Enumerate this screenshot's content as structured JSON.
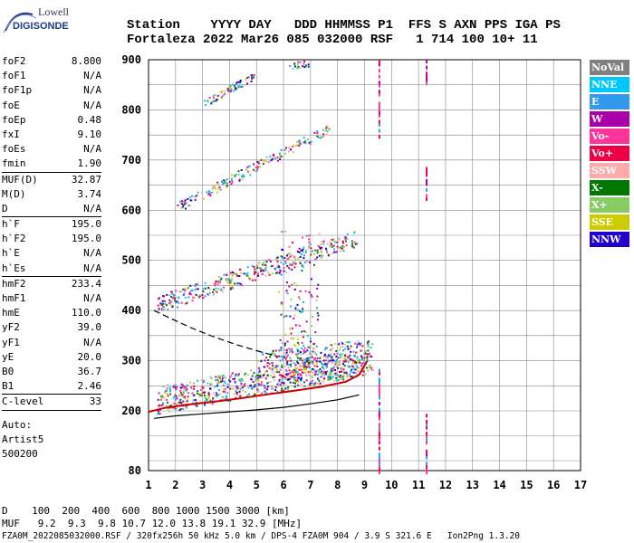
{
  "logo": {
    "brand": "Lowell",
    "name": "DIGISONDE"
  },
  "header": {
    "row1": "Station    YYYY DAY   DDD HHMMSS P1  FFS S AXN PPS IGA PS",
    "row2": "Fortaleza 2022 Mar26 085 032000 RSF   1 714 100 10+ 11"
  },
  "params": {
    "groups": [
      [
        [
          "foF2",
          "8.800"
        ],
        [
          "foF1",
          "N/A"
        ],
        [
          "foF1p",
          "N/A"
        ],
        [
          "foE",
          "N/A"
        ],
        [
          "foEp",
          "0.48"
        ],
        [
          "fxI",
          "9.10"
        ],
        [
          "foEs",
          "N/A"
        ],
        [
          "fmin",
          "1.90"
        ]
      ],
      [
        [
          "MUF(D)",
          "32.87"
        ],
        [
          "M(D)",
          "3.74"
        ],
        [
          "D",
          "N/A"
        ]
      ],
      [
        [
          "h`F",
          "195.0"
        ],
        [
          "h`F2",
          "195.0"
        ],
        [
          "h`E",
          "N/A"
        ],
        [
          "h`Es",
          "N/A"
        ]
      ],
      [
        [
          "hmF2",
          "233.4"
        ],
        [
          "hmF1",
          "N/A"
        ],
        [
          "hmE",
          "110.0"
        ],
        [
          "yF2",
          "39.0"
        ],
        [
          "yF1",
          "N/A"
        ],
        [
          "yE",
          "20.0"
        ],
        [
          "B0",
          "36.7"
        ],
        [
          "B1",
          "2.46"
        ]
      ],
      [
        [
          "C-level",
          "33"
        ]
      ]
    ],
    "auto_label": "Auto:",
    "artist": "Artist5",
    "artist_code": "500200"
  },
  "bottom": {
    "d_row": "D    100  200  400  600  800 1000 1500 3000 [km]",
    "muf_row": "MUF   9.2  9.3  9.8 10.7 12.0 13.8 19.1 32.9 [MHz]",
    "footer": "FZA0M_2022085032000.RSF / 320fx256h 50 kHz 5.0 km / DPS-4 FZA0M 904 / 3.9 S 321.6 E   Ion2Png 1.3.20"
  },
  "legend": [
    {
      "label": "NoVal",
      "color": "#808080"
    },
    {
      "label": "NNE",
      "color": "#00c8ff"
    },
    {
      "label": "E",
      "color": "#3399ee"
    },
    {
      "label": "W",
      "color": "#aa00aa"
    },
    {
      "label": "Vo-",
      "color": "#ff3399"
    },
    {
      "label": "Vo+",
      "color": "#ee0044"
    },
    {
      "label": "SSW",
      "color": "#ffaaaa"
    },
    {
      "label": "X-",
      "color": "#007700"
    },
    {
      "label": "X+",
      "color": "#88cc66"
    },
    {
      "label": "SSE",
      "color": "#cccc00"
    },
    {
      "label": "NNW",
      "color": "#2200cc"
    }
  ],
  "chart_data": {
    "type": "scatter",
    "x_ticks": [
      "1",
      "2",
      "3",
      "4",
      "5",
      "6",
      "7",
      "8",
      "9",
      "10",
      "11",
      "12",
      "13",
      "14",
      "15",
      "16",
      "17"
    ],
    "y_ticks": [
      "80",
      "200",
      "300",
      "400",
      "500",
      "600",
      "700",
      "800",
      "900"
    ],
    "xlim": [
      1,
      17
    ],
    "ylim_labels": [
      80,
      900
    ],
    "grid": true,
    "profile": {
      "x": [
        1.0,
        1.6,
        2.4,
        3.4,
        4.4,
        5.4,
        6.4,
        7.4,
        8.3,
        8.8,
        9.1
      ],
      "y": [
        198,
        206,
        212,
        218,
        225,
        233,
        240,
        248,
        258,
        272,
        300
      ]
    },
    "virtual_height_curve": {
      "x": [
        1.2,
        2.0,
        3.0,
        4.0,
        5.0,
        6.0,
        7.0,
        8.0,
        8.8
      ],
      "y": [
        185,
        190,
        194,
        198,
        202,
        207,
        214,
        222,
        232
      ]
    },
    "extrapolation": {
      "x": [
        1.2,
        1.8,
        2.6,
        3.4,
        4.2,
        5.0,
        5.8
      ],
      "y": [
        400,
        385,
        365,
        348,
        333,
        320,
        308
      ]
    },
    "clusters": [
      {
        "x0": 1.3,
        "x1": 9.1,
        "y0": 195,
        "y1": 250,
        "slope": 10,
        "n": 700
      },
      {
        "x0": 5.0,
        "x1": 9.3,
        "y0": 250,
        "y1": 320,
        "slope": 6,
        "n": 260
      },
      {
        "x0": 5.8,
        "x1": 7.3,
        "y0": 300,
        "y1": 560,
        "slope": 0,
        "n": 160
      },
      {
        "x0": 1.3,
        "x1": 8.7,
        "y0": 395,
        "y1": 430,
        "slope": 18,
        "n": 360
      },
      {
        "x0": 2.0,
        "x1": 7.8,
        "y0": 595,
        "y1": 615,
        "slope": 28,
        "n": 170
      },
      {
        "x0": 3.0,
        "x1": 5.0,
        "y0": 805,
        "y1": 820,
        "slope": 30,
        "n": 70
      },
      {
        "x0": 6.2,
        "x1": 6.9,
        "y0": 880,
        "y1": 895,
        "slope": 10,
        "n": 20
      }
    ],
    "vertical_streaks": [
      {
        "x": 9.55,
        "y0": 80,
        "y1": 300
      },
      {
        "x": 9.55,
        "y0": 750,
        "y1": 900
      },
      {
        "x": 11.3,
        "y0": 80,
        "y1": 195
      },
      {
        "x": 11.3,
        "y0": 840,
        "y1": 900
      },
      {
        "x": 11.3,
        "y0": 620,
        "y1": 690
      }
    ]
  }
}
